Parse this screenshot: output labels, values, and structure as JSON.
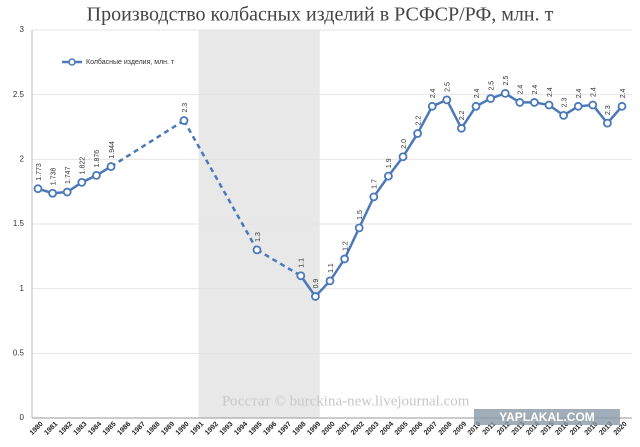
{
  "chart_data": {
    "type": "line",
    "title": "Производство колбасных изделий в РСФСР/РФ, млн. т",
    "source": "Росстат © burckina-new.livejournal.com",
    "watermark": "YAPLAKAL.COM",
    "categories": [
      "1980",
      "1981",
      "1982",
      "1983",
      "1984",
      "1985",
      "1986",
      "1987",
      "1988",
      "1989",
      "1990",
      "1991",
      "1992",
      "1993",
      "1994",
      "1995",
      "1996",
      "1997",
      "1998",
      "1999",
      "2000",
      "2001",
      "2002",
      "2003",
      "2004",
      "2005",
      "2006",
      "2007",
      "2008",
      "2009",
      "2010",
      "2011",
      "2012",
      "2013",
      "2014",
      "2015",
      "2016",
      "2017",
      "2018",
      "2019",
      "2020"
    ],
    "highlight": {
      "from": "1991",
      "to": "1999"
    },
    "series": [
      {
        "name": "Колбасные изделия, млн. т",
        "color": "#4a78b8",
        "values": [
          1.773,
          1.738,
          1.747,
          1.822,
          1.876,
          1.944,
          null,
          null,
          null,
          null,
          2.3,
          null,
          null,
          null,
          null,
          1.3,
          null,
          null,
          1.1,
          0.94,
          1.06,
          1.23,
          1.47,
          1.71,
          1.87,
          2.02,
          2.2,
          2.41,
          2.46,
          2.24,
          2.41,
          2.47,
          2.51,
          2.44,
          2.44,
          2.42,
          2.34,
          2.41,
          2.42,
          2.28,
          2.41
        ],
        "value_labels": [
          "1.773",
          "1.738",
          "1.747",
          "1.822",
          "1.876",
          "1.944",
          null,
          null,
          null,
          null,
          "2.3",
          null,
          null,
          null,
          null,
          "1.3",
          null,
          null,
          "1.1",
          "0.9",
          "1.1",
          "1.2",
          "1.5",
          "1.7",
          "1.9",
          "2.0",
          "2.2",
          "2.4",
          "2.5",
          "2.2",
          "2.4",
          "2.5",
          "2.5",
          "2.4",
          "2.4",
          "2.4",
          "2.3",
          "2.4",
          "2.4",
          "2.3",
          "2.4"
        ]
      }
    ],
    "ylim": [
      0,
      3
    ],
    "yticks": [
      0,
      0.5,
      1,
      1.5,
      2,
      2.5,
      3
    ],
    "grid": true
  }
}
